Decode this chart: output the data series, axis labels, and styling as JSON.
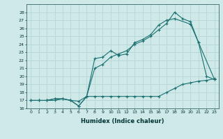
{
  "title": "",
  "xlabel": "Humidex (Indice chaleur)",
  "ylabel": "",
  "background_color": "#cfe8e8",
  "grid_color": "#b8d8d8",
  "line_color": "#1a7070",
  "xlim": [
    -0.5,
    23.5
  ],
  "ylim": [
    16,
    29
  ],
  "yticks": [
    16,
    17,
    18,
    19,
    20,
    21,
    22,
    23,
    24,
    25,
    26,
    27,
    28
  ],
  "xticks": [
    0,
    1,
    2,
    3,
    4,
    5,
    6,
    7,
    8,
    9,
    10,
    11,
    12,
    13,
    14,
    15,
    16,
    17,
    18,
    19,
    20,
    21,
    22,
    23
  ],
  "line1_x": [
    0,
    1,
    2,
    3,
    4,
    5,
    6,
    7,
    8,
    9,
    10,
    11,
    12,
    13,
    14,
    15,
    16,
    17,
    18,
    19,
    20,
    21,
    22,
    23
  ],
  "line1_y": [
    17,
    17,
    17,
    17,
    17.2,
    17,
    16.3,
    17.5,
    17.5,
    17.5,
    17.5,
    17.5,
    17.5,
    17.5,
    17.5,
    17.5,
    17.5,
    18.0,
    18.5,
    19.0,
    19.2,
    19.4,
    19.5,
    19.7
  ],
  "line2_x": [
    0,
    1,
    2,
    3,
    4,
    5,
    6,
    7,
    8,
    9,
    10,
    11,
    12,
    13,
    14,
    15,
    16,
    17,
    18,
    20,
    21,
    23
  ],
  "line2_y": [
    17,
    17,
    17,
    17.2,
    17.2,
    17,
    16.9,
    17.5,
    22.2,
    22.4,
    23.2,
    22.6,
    22.8,
    24.2,
    24.6,
    25.2,
    26.4,
    27.0,
    27.2,
    26.5,
    24.2,
    19.6
  ],
  "line3_x": [
    0,
    1,
    2,
    3,
    4,
    5,
    6,
    7,
    8,
    9,
    10,
    11,
    12,
    13,
    14,
    15,
    16,
    17,
    18,
    19,
    20,
    21,
    22,
    23
  ],
  "line3_y": [
    17,
    17,
    17,
    17.2,
    17.2,
    17,
    16.3,
    17.5,
    21.0,
    21.5,
    22.4,
    22.8,
    23.2,
    24.0,
    24.4,
    25.0,
    25.8,
    26.6,
    28.0,
    27.2,
    26.8,
    24.2,
    20.0,
    19.6
  ]
}
